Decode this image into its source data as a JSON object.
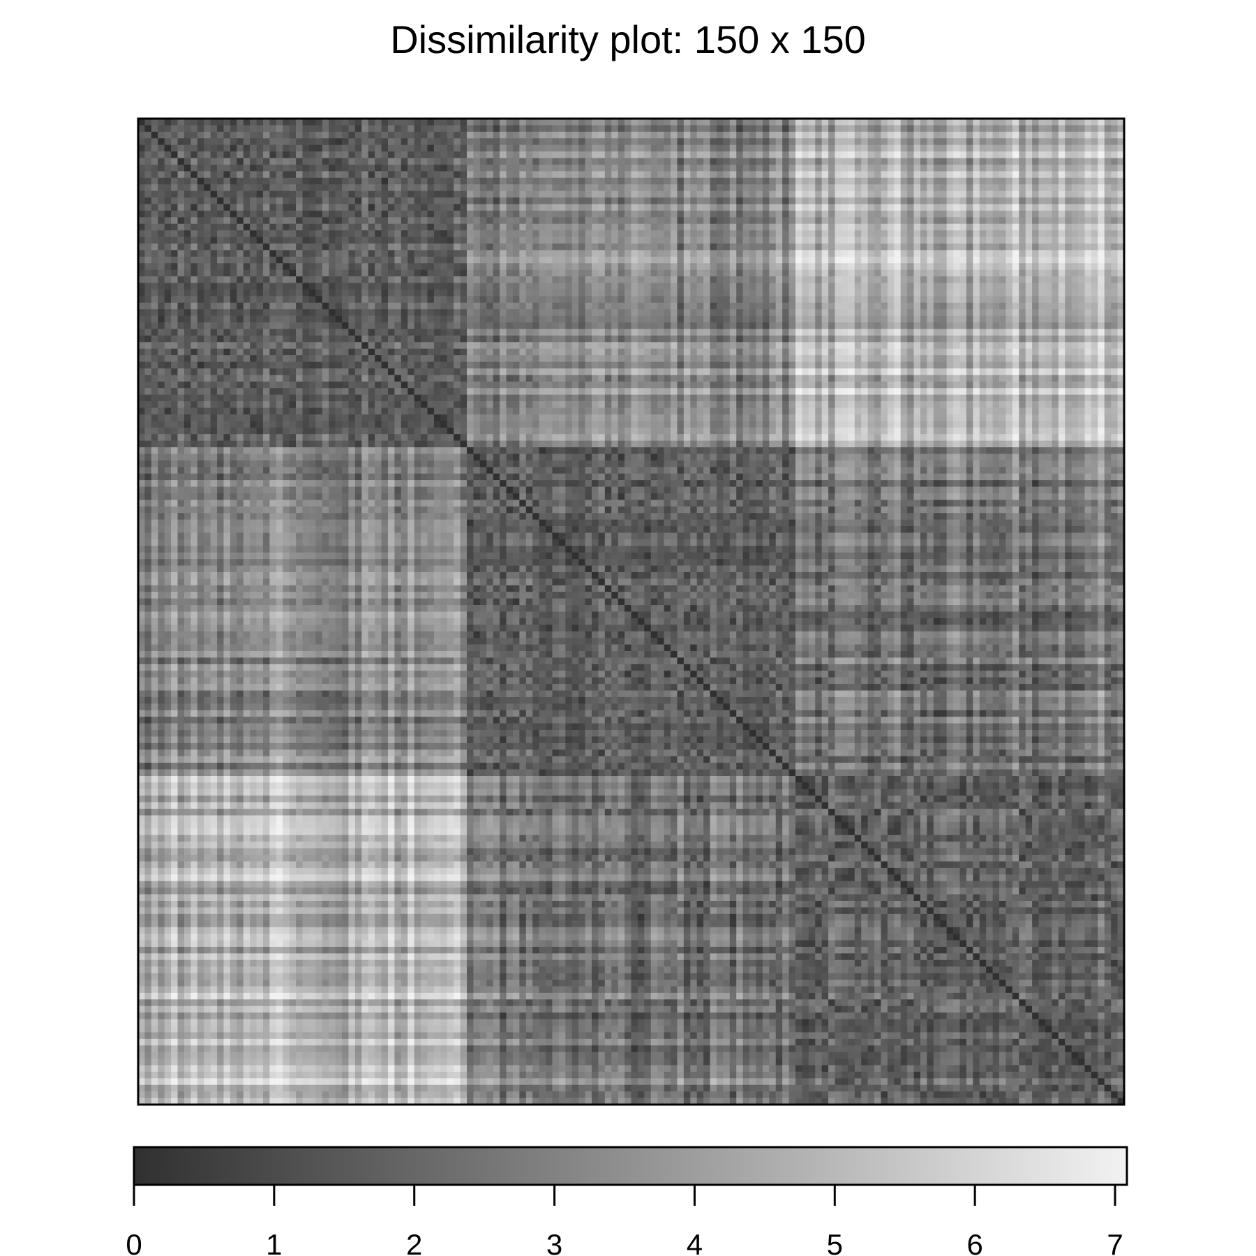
{
  "title": "Dissimilarity plot: 150 x 150",
  "chart_data": {
    "type": "heatmap",
    "title": "Dissimilarity plot: 150 x 150",
    "rows": 150,
    "cols": 150,
    "value_range": [
      0,
      7
    ],
    "symmetric": true,
    "diagonal_value": 0,
    "colormap": {
      "low": "#303030",
      "high": "#f2f2f2"
    },
    "colorbar": {
      "orientation": "horizontal",
      "placement": "bottom",
      "ticks": [
        0,
        1,
        2,
        3,
        4,
        5,
        6,
        7
      ],
      "tick_labels": [
        "0",
        "1",
        "2",
        "3",
        "4",
        "5",
        "6",
        "7"
      ]
    }
  }
}
